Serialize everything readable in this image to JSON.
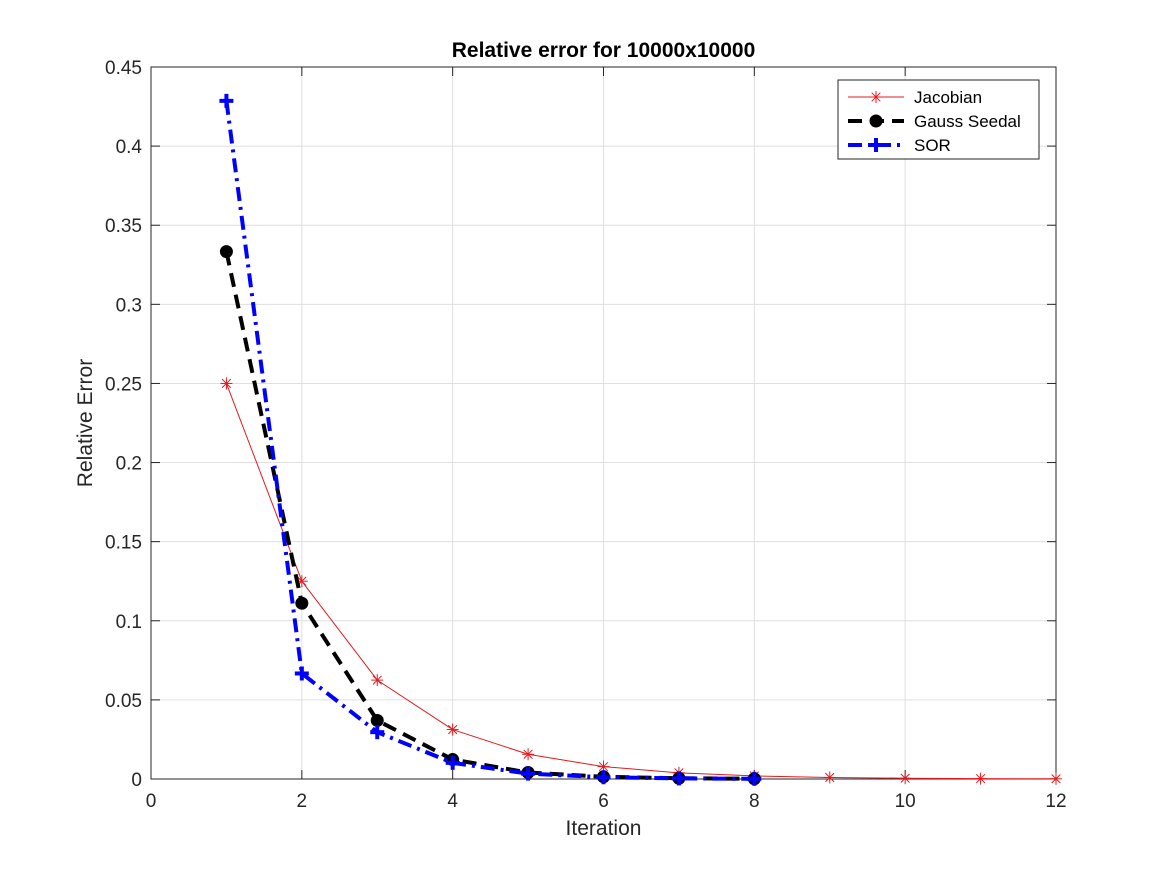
{
  "chart_data": {
    "type": "line",
    "title": "Relative error for 10000x10000",
    "xlabel": "Iteration",
    "ylabel": "Relative Error",
    "xlim": [
      0,
      12
    ],
    "ylim": [
      0,
      0.45
    ],
    "xticks": [
      0,
      2,
      4,
      6,
      8,
      10,
      12
    ],
    "yticks": [
      0,
      0.05,
      0.1,
      0.15,
      0.2,
      0.25,
      0.3,
      0.35,
      0.4,
      0.45
    ],
    "xtick_labels": [
      "0",
      "2",
      "4",
      "6",
      "8",
      "10",
      "12"
    ],
    "ytick_labels": [
      "0",
      "0.05",
      "0.1",
      "0.15",
      "0.2",
      "0.25",
      "0.3",
      "0.35",
      "0.4",
      "0.45"
    ],
    "grid": true,
    "legend_position": "top-right",
    "series": [
      {
        "name": "Jacobian",
        "color": "#e41a1c",
        "line_style": "solid",
        "marker": "asterisk",
        "x": [
          1,
          2,
          3,
          4,
          5,
          6,
          7,
          8,
          9,
          10,
          11,
          12
        ],
        "y": [
          0.25,
          0.125,
          0.0625,
          0.03125,
          0.015625,
          0.0078125,
          0.00390625,
          0.00195,
          0.00098,
          0.00049,
          0.00024,
          0.00012
        ]
      },
      {
        "name": "Gauss Seedal",
        "color": "#000000",
        "line_style": "dashed",
        "marker": "circle",
        "x": [
          1,
          2,
          3,
          4,
          5,
          6,
          7,
          8
        ],
        "y": [
          0.3333,
          0.1111,
          0.037,
          0.0123,
          0.0041,
          0.0014,
          0.00046,
          0.00015
        ]
      },
      {
        "name": "SOR",
        "color": "#0000ff",
        "line_style": "dashdot",
        "marker": "plus",
        "x": [
          1,
          2,
          3,
          4,
          5,
          6,
          7,
          8
        ],
        "y": [
          0.4286,
          0.0667,
          0.0296,
          0.0102,
          0.0034,
          0.0011,
          0.00038,
          0.00012
        ]
      }
    ]
  }
}
